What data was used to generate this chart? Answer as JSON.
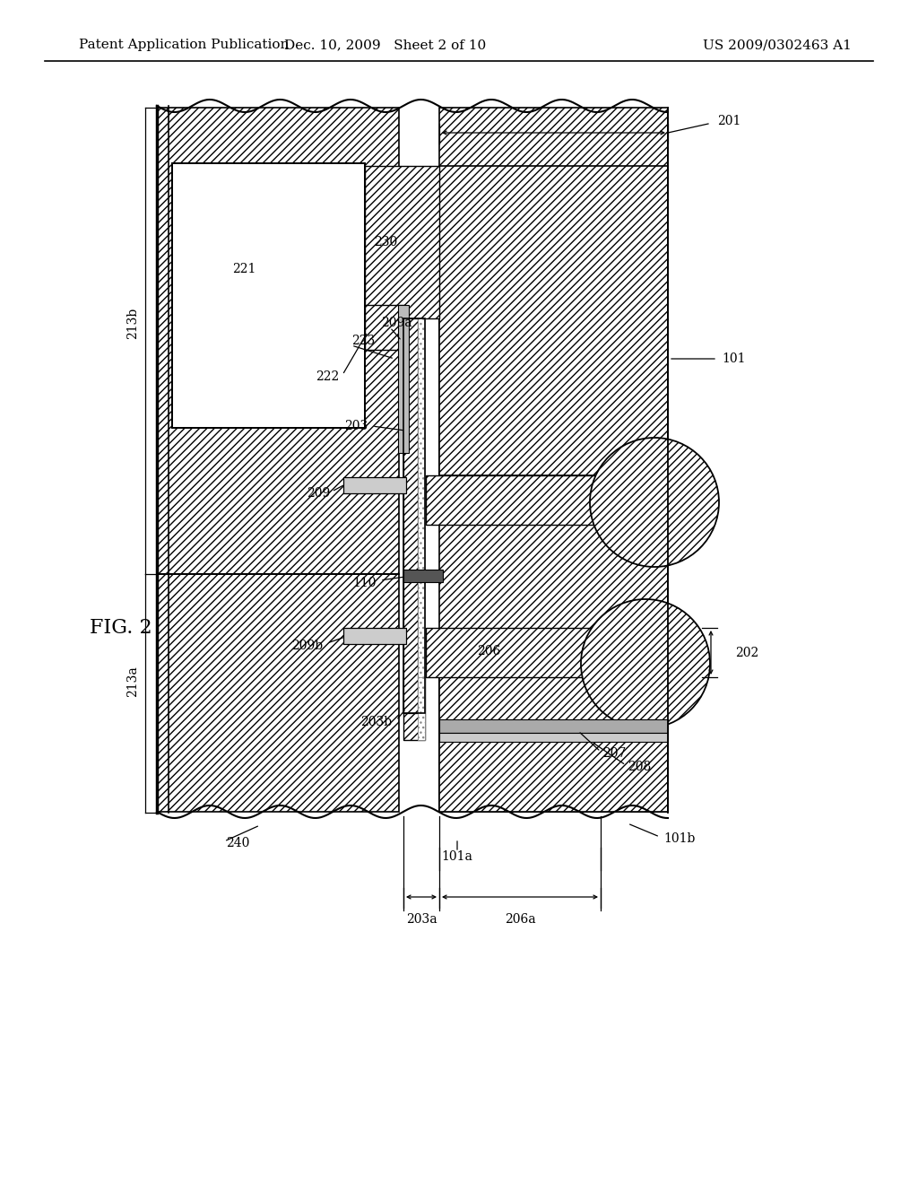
{
  "header_left": "Patent Application Publication",
  "header_mid": "Dec. 10, 2009   Sheet 2 of 10",
  "header_right": "US 2009/0302463 A1",
  "fig_label": "FIG. 2",
  "bg": "#ffffff",
  "black": "#000000"
}
